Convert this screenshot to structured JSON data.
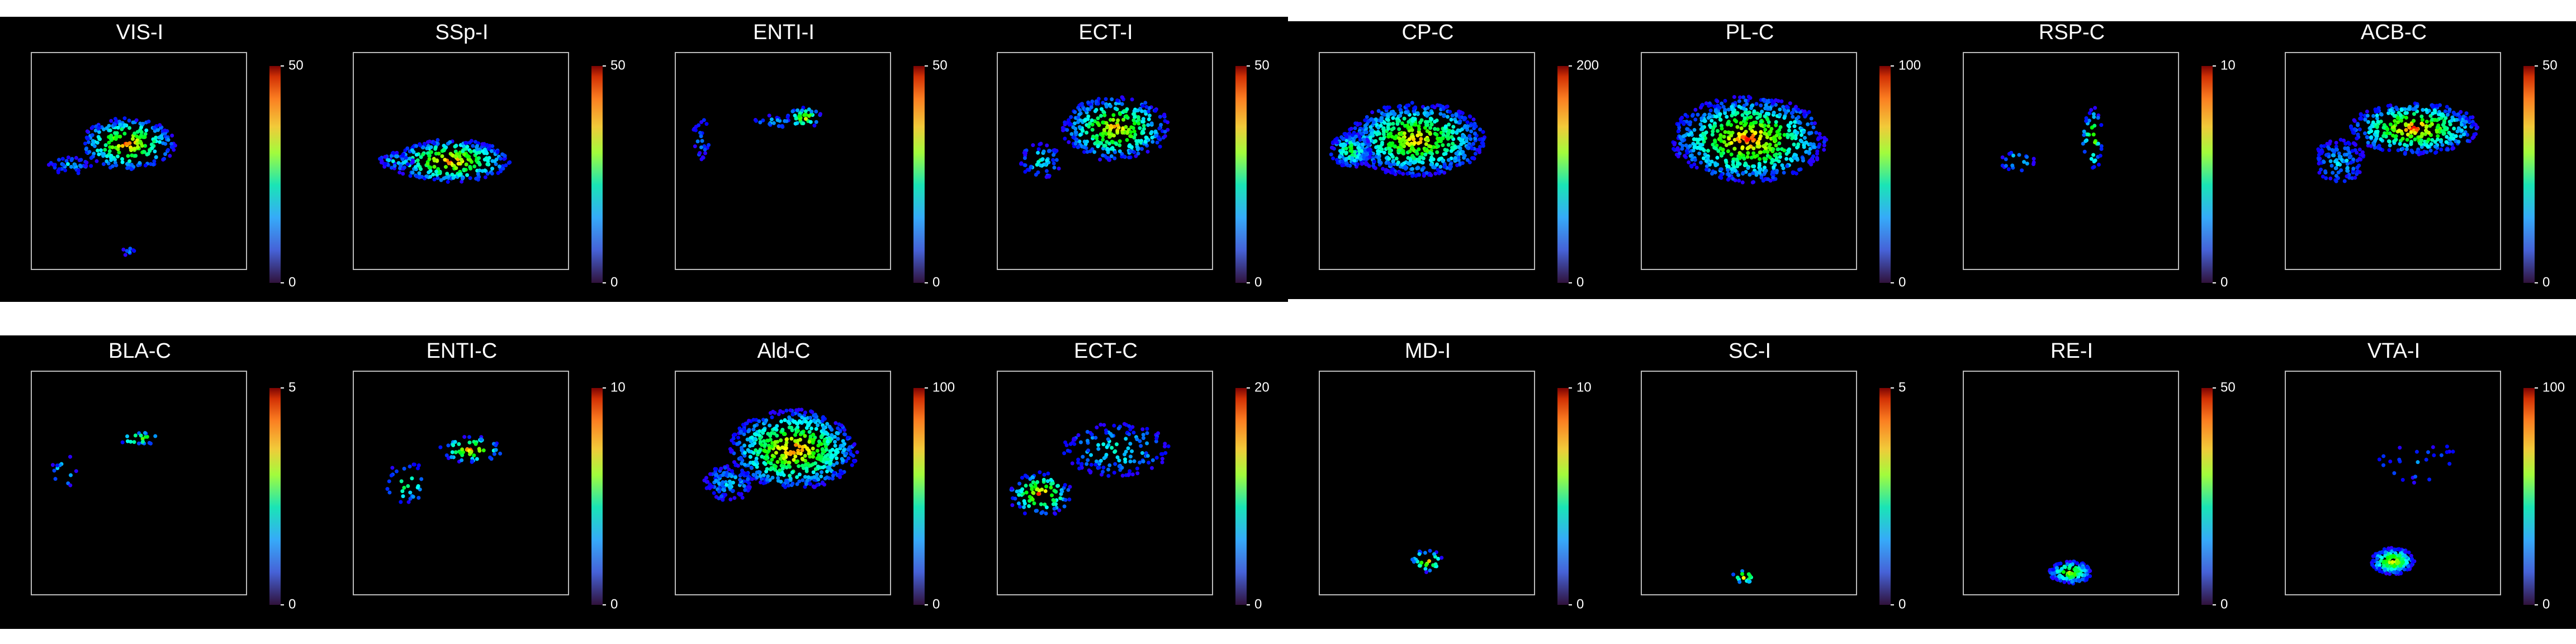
{
  "panels": [
    {
      "title": "VIS-I",
      "colorbar_ticks": [
        0,
        50
      ]
    },
    {
      "title": "SSp-I",
      "colorbar_ticks": [
        0,
        50
      ]
    },
    {
      "title": "ENTI-I",
      "colorbar_ticks": [
        0,
        50
      ]
    },
    {
      "title": "ECT-I",
      "colorbar_ticks": [
        0,
        50
      ]
    },
    {
      "title": "CP-C",
      "colorbar_ticks": [
        0,
        200
      ]
    },
    {
      "title": "PL-C",
      "colorbar_ticks": [
        0,
        100
      ]
    },
    {
      "title": "RSP-C",
      "colorbar_ticks": [
        0,
        10
      ]
    },
    {
      "title": "ACB-C",
      "colorbar_ticks": [
        0,
        50
      ]
    },
    {
      "title": "BLA-C",
      "colorbar_ticks": [
        0,
        5
      ]
    },
    {
      "title": "ENTI-C",
      "colorbar_ticks": [
        0,
        10
      ]
    },
    {
      "title": "Ald-C",
      "colorbar_ticks": [
        0,
        100
      ]
    },
    {
      "title": "ECT-C",
      "colorbar_ticks": [
        0,
        20
      ]
    },
    {
      "title": "MD-I",
      "colorbar_ticks": [
        0,
        10
      ]
    },
    {
      "title": "SC-I",
      "colorbar_ticks": [
        0,
        5
      ]
    },
    {
      "title": "RE-I",
      "colorbar_ticks": [
        0,
        50
      ]
    },
    {
      "title": "VTA-I",
      "colorbar_ticks": [
        0,
        100
      ]
    }
  ]
}
